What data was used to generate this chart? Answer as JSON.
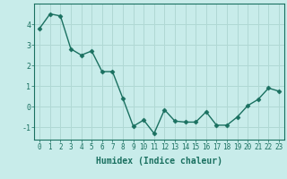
{
  "x": [
    0,
    1,
    2,
    3,
    4,
    5,
    6,
    7,
    8,
    9,
    10,
    11,
    12,
    13,
    14,
    15,
    16,
    17,
    18,
    19,
    20,
    21,
    22,
    23
  ],
  "y": [
    3.8,
    4.5,
    4.4,
    2.8,
    2.5,
    2.7,
    1.7,
    1.7,
    0.4,
    -0.95,
    -0.65,
    -1.3,
    -0.15,
    -0.7,
    -0.75,
    -0.75,
    -0.25,
    -0.9,
    -0.9,
    -0.5,
    0.05,
    0.35,
    0.9,
    0.75
  ],
  "line_color": "#1a7060",
  "marker": "D",
  "markersize": 2.5,
  "linewidth": 1.0,
  "xlabel": "Humidex (Indice chaleur)",
  "xlim": [
    -0.5,
    23.5
  ],
  "ylim": [
    -1.6,
    5.0
  ],
  "yticks": [
    -1,
    0,
    1,
    2,
    3,
    4
  ],
  "xticks": [
    0,
    1,
    2,
    3,
    4,
    5,
    6,
    7,
    8,
    9,
    10,
    11,
    12,
    13,
    14,
    15,
    16,
    17,
    18,
    19,
    20,
    21,
    22,
    23
  ],
  "bg_color": "#c8ecea",
  "grid_color": "#b0d8d4",
  "axis_color": "#1a7060",
  "xlabel_fontsize": 7,
  "tick_fontsize": 5.5
}
